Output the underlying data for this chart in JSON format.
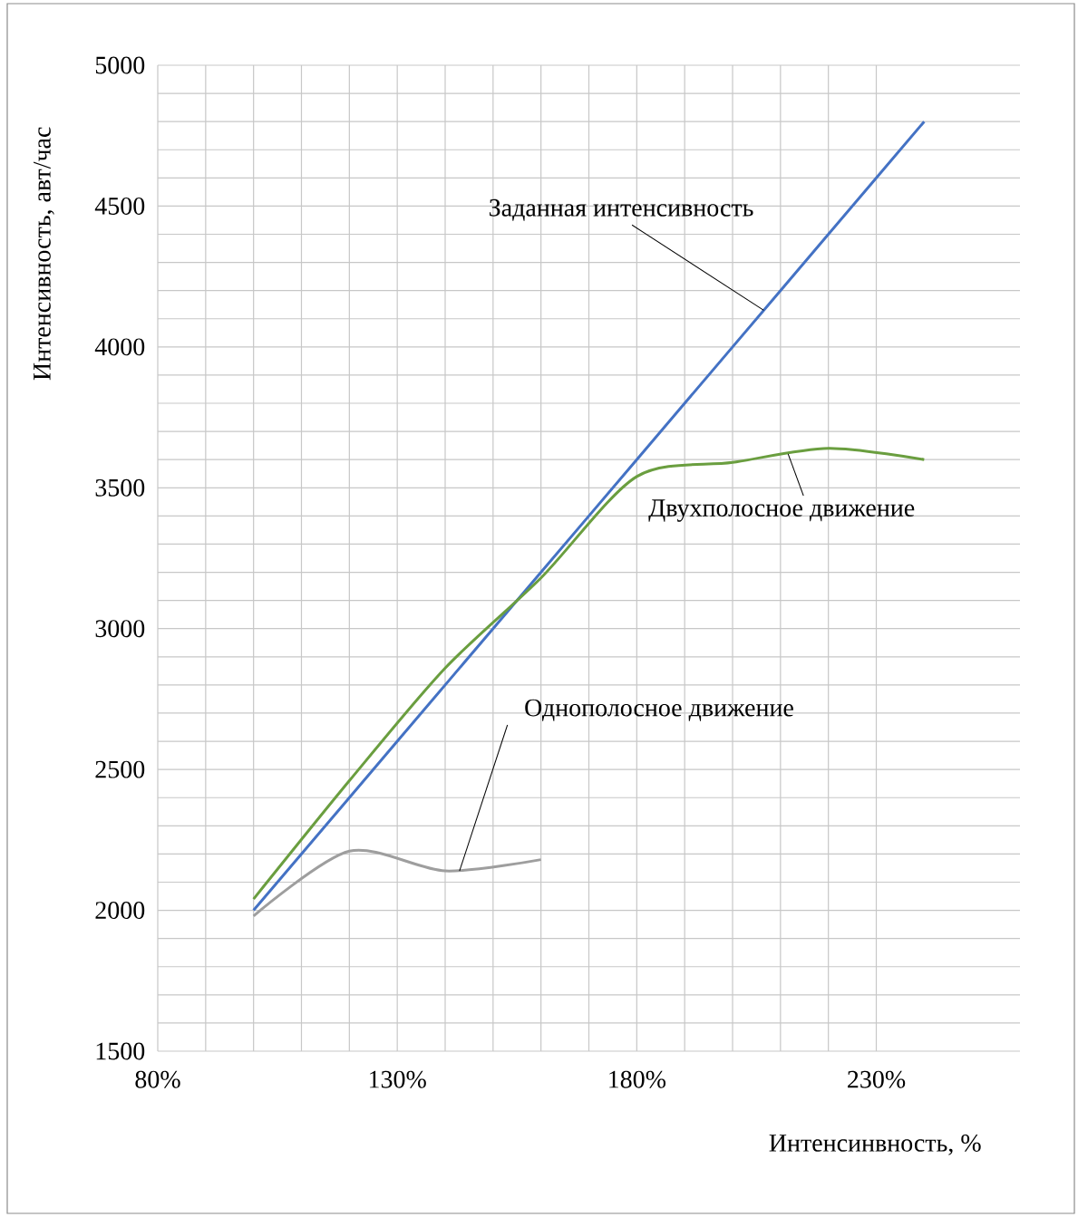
{
  "chart_data": {
    "type": "line",
    "xlabel": "Интенсинвность, %",
    "ylabel": "Интенсивность, авт/час",
    "series": [
      {
        "color": "#4472c4",
        "x": [
          100,
          120,
          140,
          160,
          180,
          200,
          220,
          240
        ],
        "values": [
          2000,
          2400,
          2800,
          3200,
          3600,
          4000,
          4400,
          4800
        ]
      },
      {
        "color": "#6a9e3f",
        "x": [
          100,
          120,
          140,
          160,
          180,
          200,
          220,
          240
        ],
        "values": [
          2040,
          2460,
          2860,
          3180,
          3540,
          3590,
          3640,
          3600
        ]
      },
      {
        "color": "#9e9e9e",
        "x": [
          100,
          120,
          140,
          160
        ],
        "values": [
          1980,
          2210,
          2140,
          2180
        ]
      }
    ],
    "annotations": [
      {
        "text": "Заданная интенсивность",
        "x": 206.5,
        "y": 4130
      },
      {
        "text": "Двухполосное движение",
        "x": 211.6,
        "y": 3620
      },
      {
        "text": "Однополосное движение",
        "x": 143,
        "y": 2140
      }
    ],
    "xlim": [
      80,
      260
    ],
    "ylim": [
      1500,
      5000
    ],
    "xticks": [
      {
        "value": 80,
        "label": "80%"
      },
      {
        "value": 130,
        "label": "130%"
      },
      {
        "value": 180,
        "label": "180%"
      },
      {
        "value": 230,
        "label": "230%"
      }
    ],
    "yticks": [
      1500,
      2000,
      2500,
      3000,
      3500,
      4000,
      4500,
      5000
    ],
    "grid": true,
    "marker": "none"
  }
}
